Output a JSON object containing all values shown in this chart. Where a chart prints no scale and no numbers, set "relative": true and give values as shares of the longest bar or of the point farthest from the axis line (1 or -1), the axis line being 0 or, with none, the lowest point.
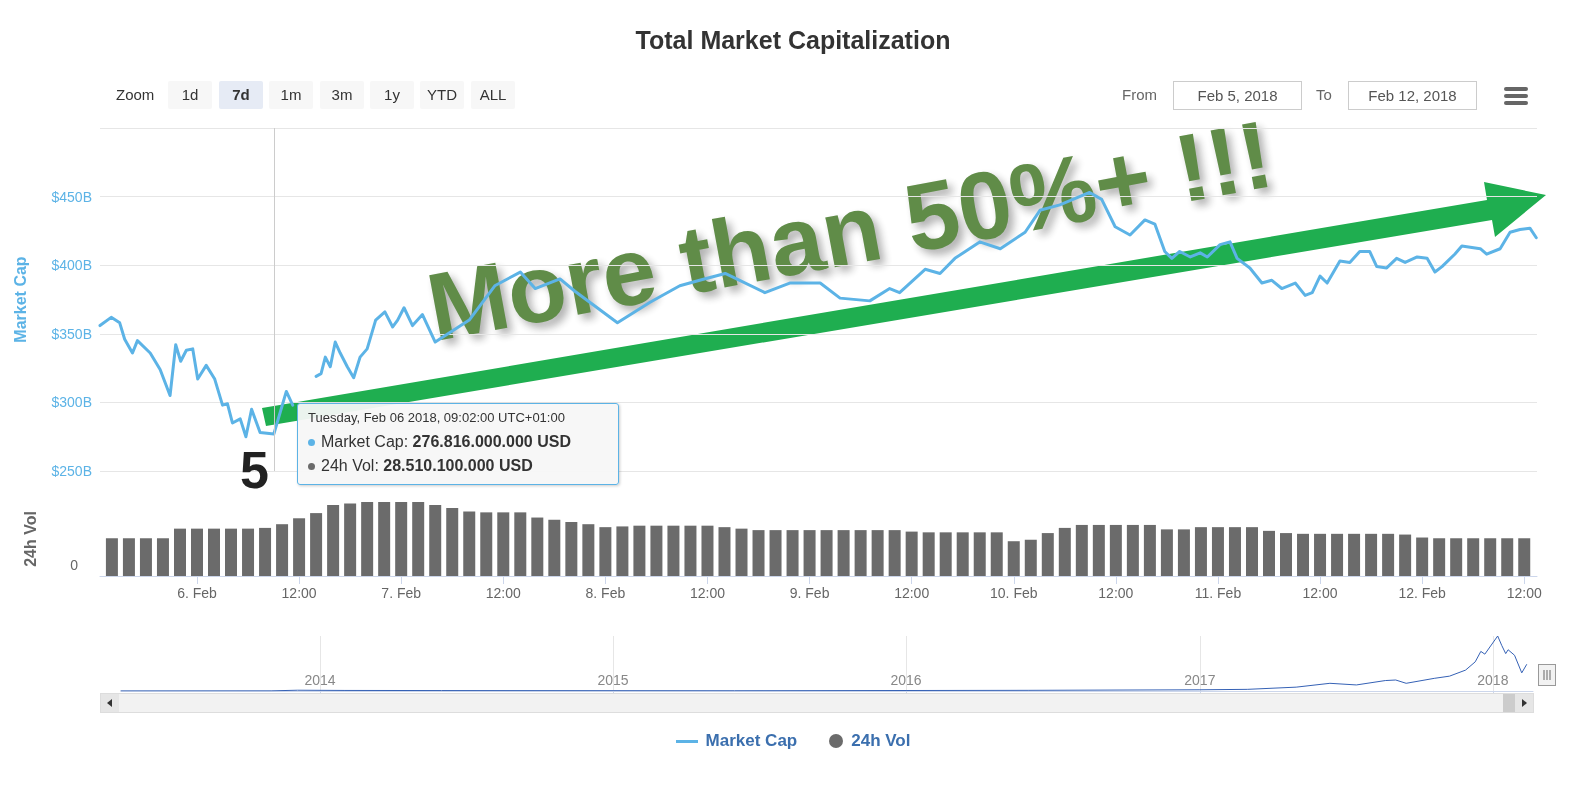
{
  "chart_data": [
    {
      "type": "line",
      "title": "Total Market Capitalization",
      "ylabel": "Market Cap",
      "marker": "none",
      "grid": "y",
      "legend": "bottom",
      "tick_labels": "y",
      "xlim": [
        "2018-02-05T12:36",
        "2018-02-12T13:30"
      ],
      "ylim": [
        250,
        500
      ],
      "yticks": [
        {
          "value": 250,
          "label": "$250B"
        },
        {
          "value": 300,
          "label": "$300B"
        },
        {
          "value": 350,
          "label": "$350B"
        },
        {
          "value": 400,
          "label": "$400B"
        },
        {
          "value": 450,
          "label": "$450B"
        },
        {
          "value": 500,
          "label": null
        }
      ],
      "ref_lines": [
        {
          "axis": "x",
          "value": "2018-02-06T09:02",
          "label": null,
          "color": "#cccccc"
        }
      ],
      "annotations": [
        "Zoom",
        "1d",
        "7d",
        "1m",
        "3m",
        "1y",
        "YTD",
        "ALL",
        "From",
        "Feb 5, 2018",
        "To",
        "Feb 12, 2018",
        "More than 50%+ !!!",
        "5",
        {
          "text": "Tuesday, Feb 06 2018, 09:02:00 UTC+01:00"
        },
        {
          "text": "Market Cap: 276.816.000.000 USD"
        },
        {
          "text": "24h Vol: 28.510.100.000 USD"
        }
      ],
      "series": [
        {
          "name": "Market Cap",
          "color": "#5cb3e6",
          "x": [
            "2018-02-05T12:36",
            "2018-02-05T13:55",
            "2018-02-05T14:55",
            "2018-02-05T15:30",
            "2018-02-05T16:25",
            "2018-02-05T17:00",
            "2018-02-05T18:30",
            "2018-02-05T19:40",
            "2018-02-05T20:50",
            "2018-02-05T21:30",
            "2018-02-05T22:05",
            "2018-02-05T22:45",
            "2018-02-05T23:30",
            "2018-02-06T00:05",
            "2018-02-06T01:05",
            "2018-02-06T02:05",
            "2018-02-06T03:00",
            "2018-02-06T03:35",
            "2018-02-06T04:10",
            "2018-02-06T05:05",
            "2018-02-06T05:45",
            "2018-02-06T06:25",
            "2018-02-06T07:25",
            "2018-02-06T09:02",
            "2018-02-06T10:30",
            "2018-02-06T11:15",
            "2018-02-06T12:05",
            "2018-02-06T13:15",
            "2018-02-06T14:00",
            "2018-02-06T14:35",
            "2018-02-06T15:05",
            "2018-02-06T15:40",
            "2018-02-06T16:15",
            "2018-02-06T16:50",
            "2018-02-06T17:40",
            "2018-02-06T18:25",
            "2018-02-06T19:10",
            "2018-02-06T20:00",
            "2018-02-06T21:00",
            "2018-02-06T22:05",
            "2018-02-06T23:00",
            "2018-02-06T23:35",
            "2018-02-07T00:20",
            "2018-02-07T01:20",
            "2018-02-07T02:30",
            "2018-02-07T04:00",
            "2018-02-07T08:00",
            "2018-02-07T11:00",
            "2018-02-07T14:00",
            "2018-02-07T15:45",
            "2018-02-07T18:40",
            "2018-02-07T20:25",
            "2018-02-08T01:25",
            "2018-02-08T05:15",
            "2018-02-08T08:45",
            "2018-02-08T11:05",
            "2018-02-08T14:05",
            "2018-02-08T18:45",
            "2018-02-08T21:40",
            "2018-02-09T01:15",
            "2018-02-09T03:35",
            "2018-02-09T07:05",
            "2018-02-09T09:25",
            "2018-02-09T10:35",
            "2018-02-09T13:35",
            "2018-02-09T15:20",
            "2018-02-09T17:05",
            "2018-02-09T20:00",
            "2018-02-09T22:25",
            "2018-02-10T01:20",
            "2018-02-10T03:05",
            "2018-02-10T05:25",
            "2018-02-10T08:55",
            "2018-02-10T10:20",
            "2018-02-10T11:55",
            "2018-02-10T13:40",
            "2018-02-10T15:25",
            "2018-02-10T16:35",
            "2018-02-10T17:45",
            "2018-02-10T18:35",
            "2018-02-10T19:30",
            "2018-02-10T20:45",
            "2018-02-10T21:55",
            "2018-02-10T22:45",
            "2018-02-11T00:15",
            "2018-02-11T01:25",
            "2018-02-11T02:15",
            "2018-02-11T03:45",
            "2018-02-11T05:10",
            "2018-02-11T06:20",
            "2018-02-11T07:30",
            "2018-02-11T09:05",
            "2018-02-11T10:15",
            "2018-02-11T11:05",
            "2018-02-11T12:00",
            "2018-02-11T12:50",
            "2018-02-11T14:20",
            "2018-02-11T15:30",
            "2018-02-11T16:40",
            "2018-02-11T17:50",
            "2018-02-11T18:40",
            "2018-02-11T19:50",
            "2018-02-11T21:00",
            "2018-02-11T22:00",
            "2018-02-11T23:25",
            "2018-02-12T00:35",
            "2018-02-12T01:30",
            "2018-02-12T02:20",
            "2018-02-12T03:50",
            "2018-02-12T04:40",
            "2018-02-12T06:50",
            "2018-02-12T07:35",
            "2018-02-12T09:10",
            "2018-02-12T10:20",
            "2018-02-12T11:30",
            "2018-02-12T12:40",
            "2018-02-12T13:25"
          ],
          "values": [
            356,
            362,
            358,
            346,
            336,
            345,
            336,
            324,
            305,
            342,
            330,
            338,
            339,
            317,
            327,
            317,
            298,
            299,
            285,
            288,
            275,
            295,
            278,
            277,
            308,
            298,
            null,
            null,
            319,
            321,
            333,
            326,
            344,
            336,
            326,
            318,
            333,
            339,
            360,
            366,
            355,
            360,
            369,
            356,
            364,
            344,
            360,
            385,
            395,
            383,
            390,
            381,
            358,
            373,
            385,
            389,
            394,
            380,
            387,
            387,
            376,
            374,
            383,
            380,
            397,
            394,
            405,
            417,
            412,
            424,
            440,
            444,
            453,
            448,
            428,
            422,
            433,
            430,
            410,
            405,
            410,
            406,
            409,
            406,
            415,
            417,
            405,
            398,
            387,
            389,
            383,
            387,
            378,
            380,
            392,
            387,
            403,
            402,
            410,
            410,
            399,
            398,
            405,
            402,
            406,
            405,
            395,
            399,
            408,
            414,
            412,
            408,
            412,
            424,
            426,
            427,
            420
          ]
        }
      ]
    },
    {
      "type": "bar",
      "relative": true,
      "ylabel": "24h Vol",
      "legend": "bottom",
      "grid": false,
      "xlim": [
        "2018-02-05T12:36",
        "2018-02-12T13:30"
      ],
      "xticks": [
        {
          "value": "2018-02-06",
          "label": "6. Feb"
        },
        {
          "value": "2018-02-06T12:00",
          "label": "12:00"
        },
        {
          "value": "2018-02-07",
          "label": "7. Feb"
        },
        {
          "value": "2018-02-07T12:00",
          "label": "12:00"
        },
        {
          "value": "2018-02-08",
          "label": "8. Feb"
        },
        {
          "value": "2018-02-08T12:00",
          "label": "12:00"
        },
        {
          "value": "2018-02-09",
          "label": "9. Feb"
        },
        {
          "value": "2018-02-09T12:00",
          "label": "12:00"
        },
        {
          "value": "2018-02-10",
          "label": "10. Feb"
        },
        {
          "value": "2018-02-10T12:00",
          "label": "12:00"
        },
        {
          "value": "2018-02-11",
          "label": "11. Feb"
        },
        {
          "value": "2018-02-11T12:00",
          "label": "12:00"
        },
        {
          "value": "2018-02-12",
          "label": "12. Feb"
        },
        {
          "value": "2018-02-12T12:00",
          "label": "12:00"
        }
      ],
      "annotations": [
        "0"
      ],
      "series": [
        {
          "name": "24h Vol",
          "color": "#6b6b6b",
          "x": [
            "2018-02-05T14:00",
            "2018-02-05T16:00",
            "2018-02-05T18:00",
            "2018-02-05T20:00",
            "2018-02-05T22:00",
            "2018-02-06T00:00",
            "2018-02-06T02:00",
            "2018-02-06T04:00",
            "2018-02-06T06:00",
            "2018-02-06T08:00",
            "2018-02-06T10:00",
            "2018-02-06T12:00",
            "2018-02-06T14:00",
            "2018-02-06T16:00",
            "2018-02-06T18:00",
            "2018-02-06T20:00",
            "2018-02-06T22:00",
            "2018-02-07T00:00",
            "2018-02-07T02:00",
            "2018-02-07T04:00",
            "2018-02-07T06:00",
            "2018-02-07T08:00",
            "2018-02-07T10:00",
            "2018-02-07T12:00",
            "2018-02-07T14:00",
            "2018-02-07T16:00",
            "2018-02-07T18:00",
            "2018-02-07T20:00",
            "2018-02-07T22:00",
            "2018-02-08T00:00",
            "2018-02-08T02:00",
            "2018-02-08T04:00",
            "2018-02-08T06:00",
            "2018-02-08T08:00",
            "2018-02-08T10:00",
            "2018-02-08T12:00",
            "2018-02-08T14:00",
            "2018-02-08T16:00",
            "2018-02-08T18:00",
            "2018-02-08T20:00",
            "2018-02-08T22:00",
            "2018-02-09T00:00",
            "2018-02-09T02:00",
            "2018-02-09T04:00",
            "2018-02-09T06:00",
            "2018-02-09T08:00",
            "2018-02-09T10:00",
            "2018-02-09T12:00",
            "2018-02-09T14:00",
            "2018-02-09T16:00",
            "2018-02-09T18:00",
            "2018-02-09T20:00",
            "2018-02-09T22:00",
            "2018-02-10T00:00",
            "2018-02-10T02:00",
            "2018-02-10T04:00",
            "2018-02-10T06:00",
            "2018-02-10T08:00",
            "2018-02-10T10:00",
            "2018-02-10T12:00",
            "2018-02-10T14:00",
            "2018-02-10T16:00",
            "2018-02-10T18:00",
            "2018-02-10T20:00",
            "2018-02-10T22:00",
            "2018-02-11T00:00",
            "2018-02-11T02:00",
            "2018-02-11T04:00",
            "2018-02-11T06:00",
            "2018-02-11T08:00",
            "2018-02-11T10:00",
            "2018-02-11T12:00",
            "2018-02-11T14:00",
            "2018-02-11T16:00",
            "2018-02-11T18:00",
            "2018-02-11T20:00",
            "2018-02-11T22:00",
            "2018-02-12T00:00",
            "2018-02-12T02:00",
            "2018-02-12T04:00",
            "2018-02-12T06:00",
            "2018-02-12T08:00",
            "2018-02-12T10:00",
            "2018-02-12T12:00"
          ],
          "values": [
            0.51,
            0.51,
            0.51,
            0.51,
            0.64,
            0.64,
            0.64,
            0.64,
            0.64,
            0.65,
            0.7,
            0.78,
            0.85,
            0.96,
            0.98,
            1,
            1,
            1,
            1,
            0.96,
            0.92,
            0.87,
            0.86,
            0.86,
            0.86,
            0.79,
            0.76,
            0.73,
            0.7,
            0.66,
            0.67,
            0.68,
            0.68,
            0.68,
            0.68,
            0.68,
            0.66,
            0.64,
            0.62,
            0.62,
            0.62,
            0.62,
            0.62,
            0.62,
            0.62,
            0.62,
            0.62,
            0.6,
            0.59,
            0.59,
            0.59,
            0.59,
            0.59,
            0.47,
            0.49,
            0.58,
            0.65,
            0.69,
            0.69,
            0.69,
            0.69,
            0.69,
            0.63,
            0.63,
            0.66,
            0.66,
            0.66,
            0.66,
            0.61,
            0.58,
            0.57,
            0.57,
            0.57,
            0.57,
            0.57,
            0.57,
            0.56,
            0.52,
            0.51,
            0.51,
            0.51,
            0.51,
            0.51,
            0.51
          ]
        }
      ]
    },
    {
      "type": "line",
      "relative": true,
      "marker": "none",
      "grid": "x",
      "tick_labels": "x",
      "xlim": [
        "2013-04-28",
        "2018-02-20"
      ],
      "xticks": [
        {
          "value": "2014",
          "label": "2014"
        },
        {
          "value": "2015",
          "label": "2015"
        },
        {
          "value": "2016",
          "label": "2016"
        },
        {
          "value": "2017",
          "label": "2017"
        },
        {
          "value": "2018",
          "label": "2018"
        }
      ],
      "series": [
        {
          "color": "#3561b5",
          "x": [
            "2013-04-28",
            "2013-11-01",
            "2013-12-04",
            "2014-02-01",
            "2014-06-01",
            "2015-01-01",
            "2015-06-01",
            "2016-01-01",
            "2016-06-01",
            "2017-01-01",
            "2017-03-01",
            "2017-05-01",
            "2017-06-12",
            "2017-07-15",
            "2017-08-20",
            "2017-09-02",
            "2017-09-15",
            "2017-10-20",
            "2017-11-08",
            "2017-11-28",
            "2017-12-10",
            "2017-12-17",
            "2017-12-22",
            "2018-01-07",
            "2018-01-12",
            "2018-01-17",
            "2018-01-20",
            "2018-01-28",
            "2018-02-06",
            "2018-02-12"
          ],
          "values": [
            0.002,
            0.003,
            0.014,
            0.01,
            0.008,
            0.006,
            0.005,
            0.009,
            0.012,
            0.022,
            0.03,
            0.07,
            0.14,
            0.11,
            0.19,
            0.2,
            0.14,
            0.23,
            0.27,
            0.38,
            0.53,
            0.72,
            0.67,
            1,
            0.83,
            0.68,
            0.75,
            0.65,
            0.33,
            0.48
          ]
        }
      ]
    }
  ]
}
